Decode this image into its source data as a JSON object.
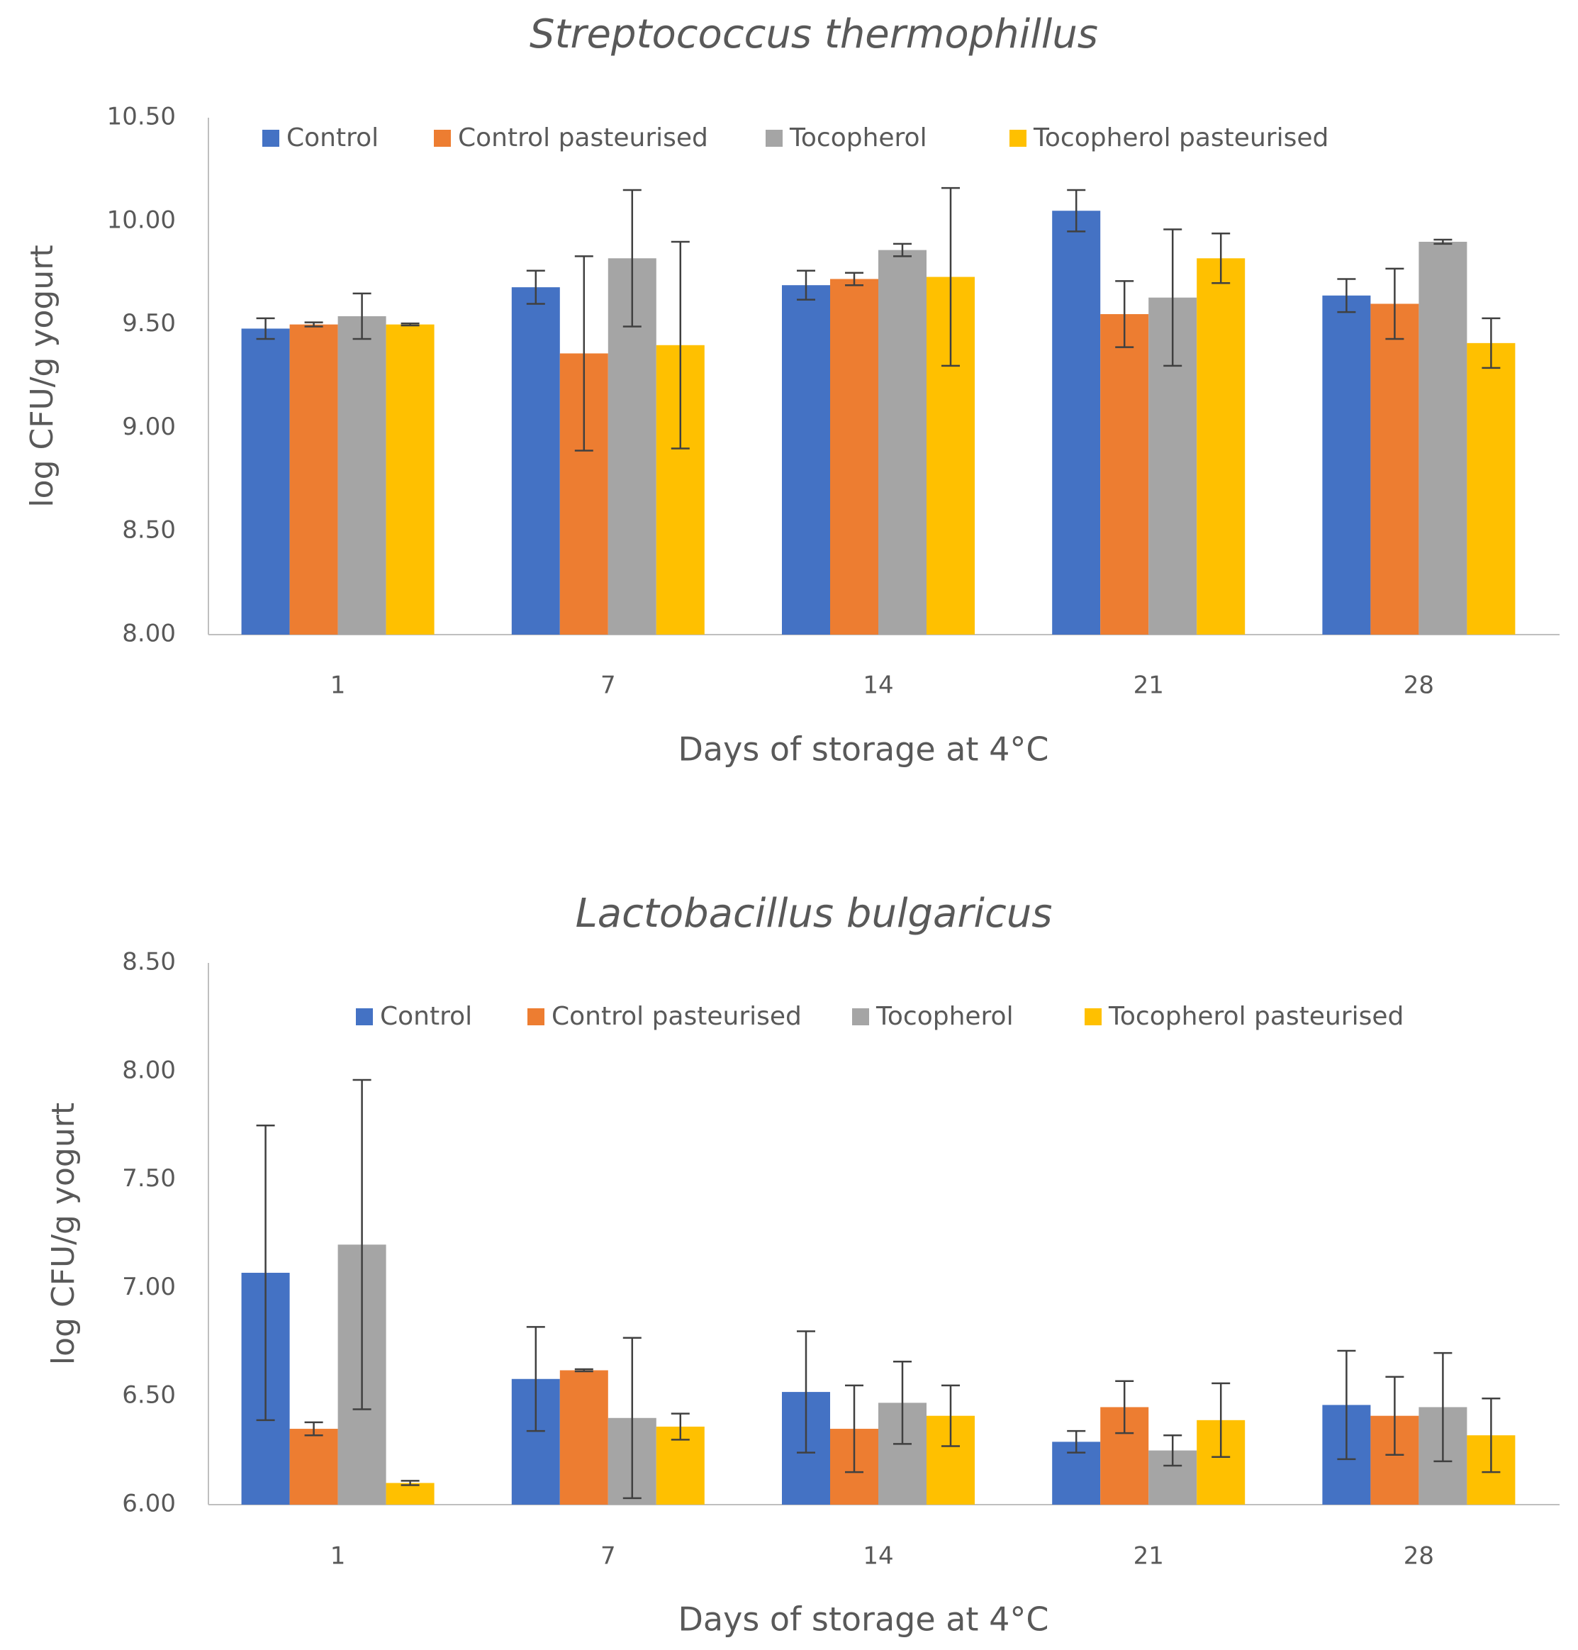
{
  "chart_data": [
    {
      "type": "bar",
      "title": "Streptococcus thermophillus",
      "xlabel": "Days of storage at 4°C",
      "ylabel": "log CFU/g yogurt",
      "ylim": [
        8.0,
        10.5
      ],
      "yticks": [
        "8.00",
        "8.50",
        "9.00",
        "9.50",
        "10.00",
        "10.50"
      ],
      "categories": [
        "1",
        "7",
        "14",
        "21",
        "28"
      ],
      "legend_position": "top",
      "series": [
        {
          "name": "Control",
          "color": "#4472C4",
          "values": [
            9.48,
            9.68,
            9.69,
            10.05,
            9.64
          ],
          "errors": [
            0.05,
            0.08,
            0.07,
            0.1,
            0.08
          ]
        },
        {
          "name": "Control pasteurised",
          "color": "#ED7D31",
          "values": [
            9.5,
            9.36,
            9.72,
            9.55,
            9.6
          ],
          "errors": [
            0.01,
            0.47,
            0.03,
            0.16,
            0.17
          ]
        },
        {
          "name": "Tocopherol",
          "color": "#A5A5A5",
          "values": [
            9.54,
            9.82,
            9.86,
            9.63,
            9.9
          ],
          "errors": [
            0.11,
            0.33,
            0.03,
            0.33,
            0.01
          ]
        },
        {
          "name": "Tocopherol pasteurised",
          "color": "#FFC000",
          "values": [
            9.5,
            9.4,
            9.73,
            9.82,
            9.41
          ],
          "errors": [
            0.005,
            0.5,
            0.43,
            0.12,
            0.12
          ]
        }
      ]
    },
    {
      "type": "bar",
      "title": "Lactobacillus bulgaricus",
      "xlabel": "Days of storage at 4°C",
      "ylabel": "log CFU/g yogurt",
      "ylim": [
        6.0,
        8.5
      ],
      "yticks": [
        "6.00",
        "6.50",
        "7.00",
        "7.50",
        "8.00",
        "8.50"
      ],
      "categories": [
        "1",
        "7",
        "14",
        "21",
        "28"
      ],
      "legend_position": "top",
      "series": [
        {
          "name": "Control",
          "color": "#4472C4",
          "values": [
            7.07,
            6.58,
            6.52,
            6.29,
            6.46
          ],
          "errors": [
            0.68,
            0.24,
            0.28,
            0.05,
            0.25
          ]
        },
        {
          "name": "Control pasteurised",
          "color": "#ED7D31",
          "values": [
            6.35,
            6.62,
            6.35,
            6.45,
            6.41
          ],
          "errors": [
            0.03,
            0.005,
            0.2,
            0.12,
            0.18
          ]
        },
        {
          "name": "Tocopherol",
          "color": "#A5A5A5",
          "values": [
            7.2,
            6.4,
            6.47,
            6.25,
            6.45
          ],
          "errors": [
            0.76,
            0.37,
            0.19,
            0.07,
            0.25
          ]
        },
        {
          "name": "Tocopherol pasteurised",
          "color": "#FFC000",
          "values": [
            6.1,
            6.36,
            6.41,
            6.39,
            6.32
          ],
          "errors": [
            0.01,
            0.06,
            0.14,
            0.17,
            0.17
          ]
        }
      ]
    }
  ]
}
